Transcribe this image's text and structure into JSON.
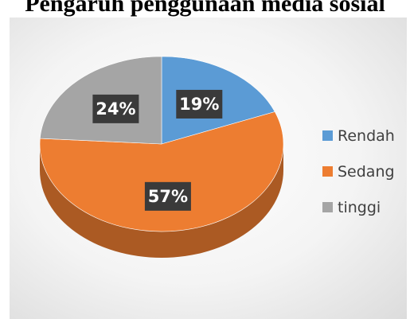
{
  "chart_data": {
    "type": "pie",
    "title": "Pengaruh penggunaan media sosial",
    "categories": [
      "Rendah",
      "Sedang",
      "tinggi"
    ],
    "values": [
      19,
      57,
      24
    ],
    "data_labels": [
      "19%",
      "57%",
      "24%"
    ],
    "colors": [
      "#5b9bd5",
      "#ed7d31",
      "#a5a5a5"
    ],
    "legend_position": "right",
    "style": "3d"
  }
}
